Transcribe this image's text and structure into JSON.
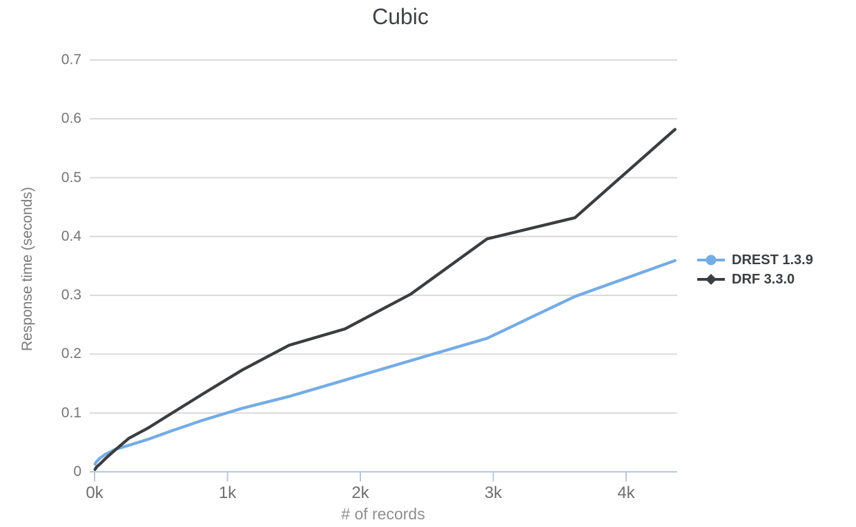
{
  "title": "Cubic",
  "axes": {
    "x_label": "# of records",
    "y_label": "Response time (seconds)",
    "x_ticks": [
      {
        "label": "0k",
        "value": 0
      },
      {
        "label": "1k",
        "value": 1000
      },
      {
        "label": "2k",
        "value": 2000
      },
      {
        "label": "3k",
        "value": 3000
      },
      {
        "label": "4k",
        "value": 4000
      }
    ],
    "y_ticks": [
      {
        "label": "0",
        "value": 0
      },
      {
        "label": "0.1",
        "value": 0.1
      },
      {
        "label": "0.2",
        "value": 0.2
      },
      {
        "label": "0.3",
        "value": 0.3
      },
      {
        "label": "0.4",
        "value": 0.4
      },
      {
        "label": "0.5",
        "value": 0.5
      },
      {
        "label": "0.6",
        "value": 0.6
      },
      {
        "label": "0.7",
        "value": 0.7
      }
    ]
  },
  "legend": [
    {
      "name": "DREST 1.3.9",
      "color": "#74ace6",
      "marker": "circle"
    },
    {
      "name": "DRF 3.3.0",
      "color": "#3b3e40",
      "marker": "diamond"
    }
  ],
  "colors": {
    "drest_blue": "#74ace6",
    "drf_dark": "#3b3e40",
    "gridline": "#d9d9d9",
    "axis_line": "#b9c8da",
    "tick_text": "#757575",
    "title_text": "#3f4245"
  },
  "chart_data": {
    "type": "line",
    "title": "Cubic",
    "xlabel": "# of records",
    "ylabel": "Response time (seconds)",
    "xlim": [
      0,
      4400
    ],
    "ylim": [
      0,
      0.7
    ],
    "grid": "horizontal-only",
    "legend_position": "right",
    "x": [
      3,
      14,
      39,
      84,
      155,
      258,
      399,
      584,
      819,
      1110,
      1463,
      1884,
      2379,
      2954,
      3615,
      4368
    ],
    "series": [
      {
        "name": "DREST 1.3.9",
        "color": "#74ace6",
        "marker": "circle",
        "values": [
          0.013,
          0.017,
          0.023,
          0.03,
          0.038,
          0.045,
          0.055,
          0.07,
          0.088,
          0.108,
          0.128,
          0.156,
          0.189,
          0.227,
          0.298,
          0.359
        ]
      },
      {
        "name": "DRF 3.3.0",
        "color": "#3b3e40",
        "marker": "diamond",
        "values": [
          0.004,
          0.008,
          0.013,
          0.023,
          0.037,
          0.057,
          0.074,
          0.1,
          0.133,
          0.173,
          0.215,
          0.243,
          0.302,
          0.396,
          0.432,
          0.582
        ]
      }
    ]
  }
}
